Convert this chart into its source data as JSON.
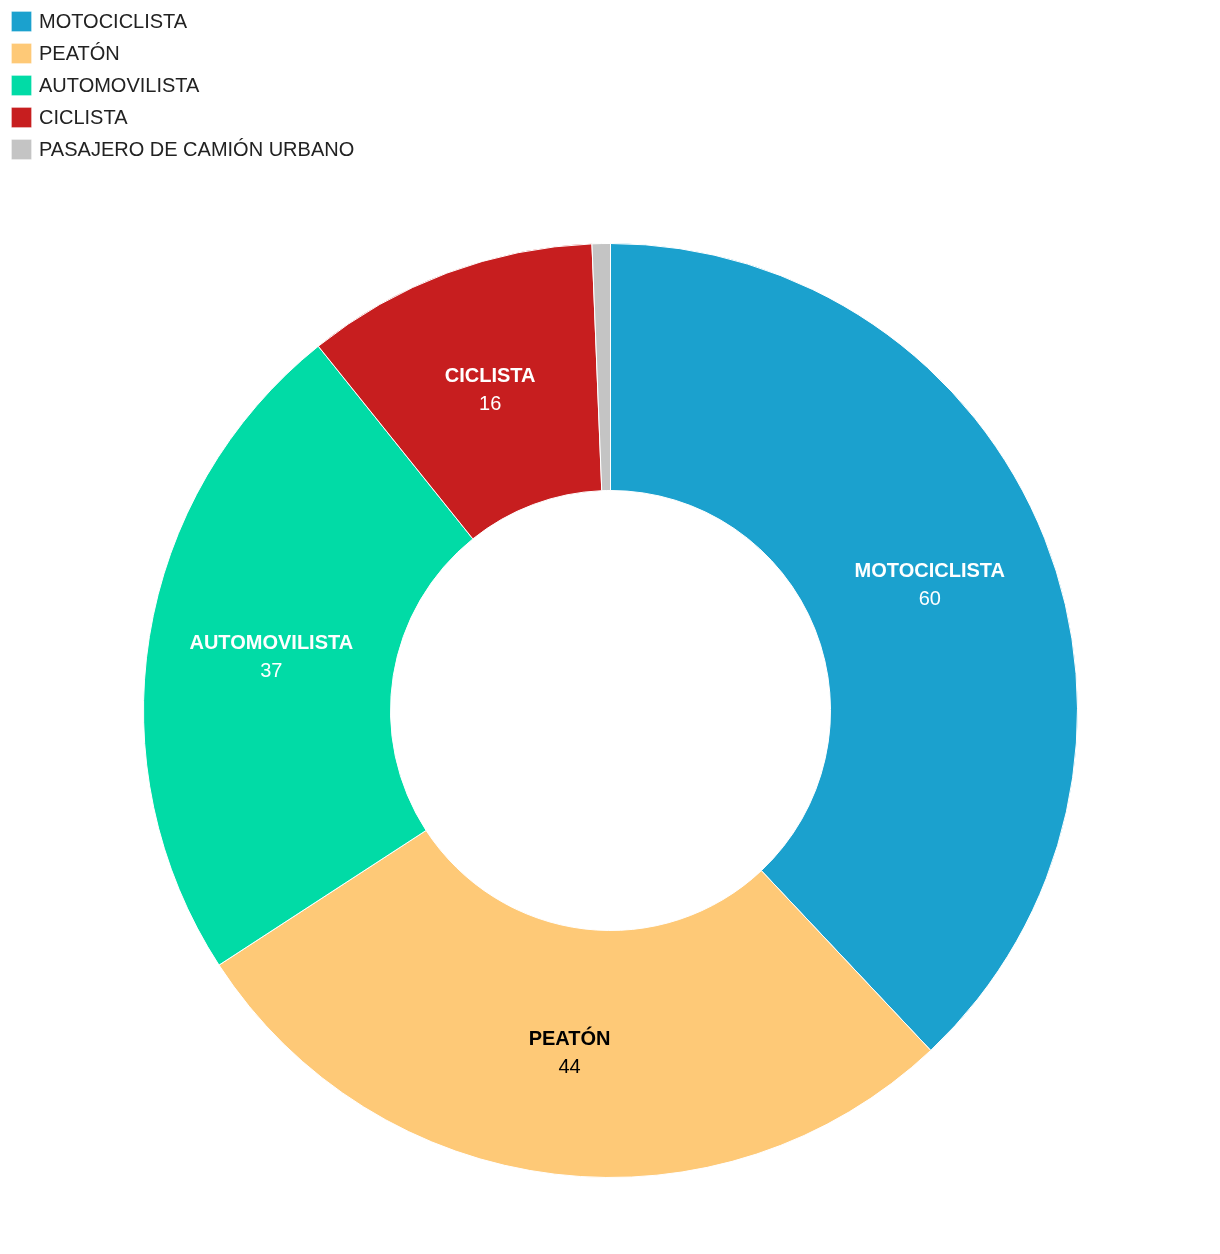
{
  "chart_data": {
    "type": "donut",
    "categories": [
      "MOTOCICLISTA",
      "PEATÓN",
      "AUTOMOVILISTA",
      "CICLISTA",
      "PASAJERO DE CAMIÓN URBANO"
    ],
    "values": [
      60,
      44,
      37,
      16,
      1
    ],
    "value_labels": [
      "60",
      "44",
      "37",
      "16",
      null
    ],
    "colors": [
      "#1ba1ce",
      "#fec977",
      "#01dba6",
      "#c71e1f",
      "#c4c4c4"
    ],
    "legend": "top left"
  }
}
